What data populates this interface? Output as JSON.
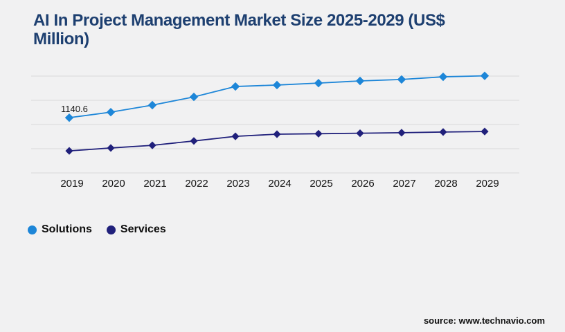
{
  "header": {
    "title": "AI In Project Management Market Size 2025-2029 (US$ Million)",
    "title_line1": "AI In Project Management Market Size 2025-2029 (US$",
    "title_line2": "Million)"
  },
  "chart_data": {
    "type": "line",
    "title": "AI In Project Management Market Size 2025-2029 (US$ Million)",
    "categories": [
      "2019",
      "2020",
      "2021",
      "2022",
      "2023",
      "2024",
      "2025",
      "2026",
      "2027",
      "2028",
      "2029"
    ],
    "series": [
      {
        "name": "Solutions",
        "color": "#1d86d8",
        "marker": "diamond",
        "values": [
          1140.6,
          1255,
          1400,
          1570,
          1785,
          1815,
          1855,
          1900,
          1930,
          1985,
          2005
        ]
      },
      {
        "name": "Services",
        "color": "#20207b",
        "marker": "diamond",
        "values": [
          455,
          515,
          570,
          660,
          755,
          800,
          810,
          820,
          830,
          845,
          855
        ]
      }
    ],
    "annotations": [
      {
        "text": "1140.6",
        "series": "Solutions",
        "category": "2019"
      }
    ],
    "xlabel": "",
    "ylabel": "",
    "ylim": [
      0,
      2000
    ],
    "gridline_step": 500,
    "grid": "horizontal",
    "y_axis_labels_visible": false,
    "legend_position": "bottom-left"
  },
  "footer": {
    "source": "source: www.technavio.com"
  },
  "colors": {
    "title": "#1d3f70",
    "background": "#f1f1f2",
    "gridline": "#d9d9d9",
    "axis_text": "#111111"
  }
}
